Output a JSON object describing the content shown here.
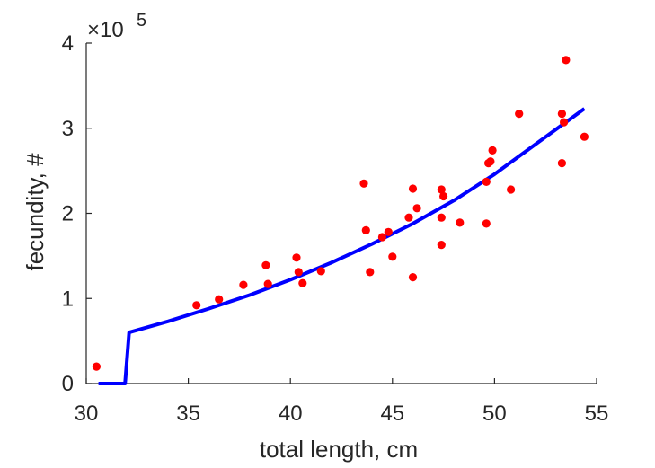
{
  "chart_data": {
    "type": "scatter",
    "title": "",
    "xlabel": "total length, cm",
    "ylabel": "fecundity, #",
    "xlim": [
      30,
      55
    ],
    "ylim": [
      0,
      400000
    ],
    "xticks": [
      30,
      35,
      40,
      45,
      50,
      55
    ],
    "yticks": [
      0,
      100000,
      200000,
      300000,
      400000
    ],
    "ytick_labels": [
      "0",
      "1",
      "2",
      "3",
      "4"
    ],
    "y_exponent": {
      "base": "×10",
      "power": "5"
    },
    "grid": false,
    "legend": "none",
    "series": [
      {
        "kind": "scatter",
        "color": "#ff0000",
        "points": [
          [
            30.5,
            20000
          ],
          [
            35.4,
            92000
          ],
          [
            36.5,
            99000
          ],
          [
            37.7,
            116000
          ],
          [
            38.8,
            139000
          ],
          [
            38.9,
            117000
          ],
          [
            40.3,
            148000
          ],
          [
            40.4,
            131000
          ],
          [
            40.6,
            118000
          ],
          [
            41.5,
            132000
          ],
          [
            43.6,
            235000
          ],
          [
            43.7,
            180000
          ],
          [
            43.9,
            131000
          ],
          [
            44.5,
            172000
          ],
          [
            44.8,
            178000
          ],
          [
            45.0,
            149000
          ],
          [
            45.8,
            195000
          ],
          [
            46.0,
            229000
          ],
          [
            46.0,
            125000
          ],
          [
            46.2,
            206000
          ],
          [
            47.4,
            228000
          ],
          [
            47.4,
            195000
          ],
          [
            47.4,
            163000
          ],
          [
            47.5,
            220000
          ],
          [
            48.3,
            189000
          ],
          [
            49.6,
            237000
          ],
          [
            49.6,
            188000
          ],
          [
            49.7,
            259000
          ],
          [
            49.8,
            261000
          ],
          [
            49.9,
            274000
          ],
          [
            50.8,
            228000
          ],
          [
            51.2,
            317000
          ],
          [
            53.3,
            317000
          ],
          [
            53.3,
            259000
          ],
          [
            53.4,
            307000
          ],
          [
            53.5,
            380000
          ],
          [
            54.4,
            290000
          ]
        ]
      },
      {
        "kind": "line",
        "color": "#0000ff",
        "points": [
          [
            30.6,
            0
          ],
          [
            31.9,
            0
          ],
          [
            32.1,
            60000
          ],
          [
            34,
            73000
          ],
          [
            36,
            88000
          ],
          [
            38,
            104000
          ],
          [
            40,
            122000
          ],
          [
            42,
            142000
          ],
          [
            44,
            164000
          ],
          [
            46,
            188000
          ],
          [
            48,
            215000
          ],
          [
            50,
            246000
          ],
          [
            52,
            281000
          ],
          [
            54.4,
            323000
          ]
        ]
      }
    ]
  }
}
